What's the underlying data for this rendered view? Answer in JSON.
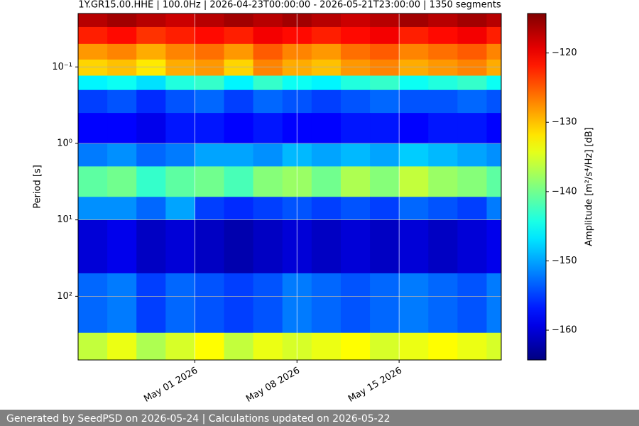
{
  "chart_data": {
    "type": "spectrogram",
    "title": "1Y.GR15.00.HHE | 100.0Hz | 2026-04-23T00:00:00 - 2026-05-21T23:00:00 | 1350 segments",
    "y_label": "Period [s]",
    "colorbar_label": "Amplitude [m²/s⁴/Hz] [dB]",
    "footer": "Generated by SeedPSD on 2026-05-24 | Calculations updated on 2026-05-22",
    "colormap": "jet",
    "log_y": true,
    "grid": true,
    "xlim": [
      "2026-04-23",
      "2026-05-22"
    ],
    "xticks": [
      {
        "value": "2026-05-01",
        "label": "May 01 2026"
      },
      {
        "value": "2026-05-08",
        "label": "May 08 2026"
      },
      {
        "value": "2026-05-15",
        "label": "May 15 2026"
      }
    ],
    "ylim": [
      680,
      0.02
    ],
    "yticks": [
      {
        "value": 0.1,
        "label": "10⁻¹"
      },
      {
        "value": 1,
        "label": "10⁰"
      },
      {
        "value": 10,
        "label": "10¹"
      },
      {
        "value": 100,
        "label": "10²"
      }
    ],
    "zlim": [
      -164.3,
      -114.3
    ],
    "zticks": [
      {
        "value": -120,
        "label": "−120"
      },
      {
        "value": -130,
        "label": "−130"
      },
      {
        "value": -140,
        "label": "−140"
      },
      {
        "value": -150,
        "label": "−150"
      },
      {
        "value": -160,
        "label": "−160"
      }
    ],
    "x": [
      "2026-04-23",
      "2026-04-25",
      "2026-04-27",
      "2026-04-29",
      "2026-05-01",
      "2026-05-03",
      "2026-05-05",
      "2026-05-07",
      "2026-05-09",
      "2026-05-11",
      "2026-05-13",
      "2026-05-15",
      "2026-05-17",
      "2026-05-19",
      "2026-05-21"
    ],
    "period_edges": [
      0.02,
      0.03,
      0.05,
      0.08,
      0.13,
      0.2,
      0.4,
      1,
      2,
      5,
      10,
      50,
      300,
      680
    ],
    "z": [
      [
        -117,
        -116,
        -117,
        -118,
        -117,
        -116,
        -117,
        -116,
        -117,
        -118,
        -117,
        -116,
        -117,
        -116,
        -117
      ],
      [
        -122,
        -121,
        -123,
        -122,
        -121,
        -122,
        -120,
        -121,
        -122,
        -121,
        -120,
        -122,
        -121,
        -120,
        -122
      ],
      [
        -128,
        -127,
        -129,
        -127,
        -126,
        -128,
        -125,
        -127,
        -128,
        -126,
        -125,
        -127,
        -126,
        -125,
        -127
      ],
      [
        -131,
        -130,
        -132,
        -129,
        -128,
        -131,
        -127,
        -129,
        -130,
        -128,
        -127,
        -129,
        -128,
        -127,
        -129
      ],
      [
        -146,
        -145,
        -147,
        -144,
        -143,
        -146,
        -143,
        -145,
        -146,
        -144,
        -143,
        -145,
        -144,
        -143,
        -145
      ],
      [
        -155,
        -154,
        -156,
        -154,
        -153,
        -155,
        -153,
        -154,
        -155,
        -154,
        -153,
        -154,
        -154,
        -153,
        -154
      ],
      [
        -158,
        -158,
        -159,
        -157,
        -157,
        -158,
        -157,
        -158,
        -158,
        -157,
        -157,
        -158,
        -157,
        -157,
        -158
      ],
      [
        -152,
        -151,
        -153,
        -152,
        -150,
        -150,
        -151,
        -149,
        -150,
        -149,
        -150,
        -148,
        -149,
        -150,
        -151
      ],
      [
        -141,
        -140,
        -143,
        -141,
        -140,
        -142,
        -139,
        -138,
        -140,
        -137,
        -139,
        -136,
        -138,
        -139,
        -141
      ],
      [
        -151,
        -151,
        -153,
        -150,
        -155,
        -156,
        -155,
        -154,
        -155,
        -154,
        -155,
        -153,
        -154,
        -155,
        -152
      ],
      [
        -160,
        -159,
        -161,
        -160,
        -161,
        -162,
        -161,
        -160,
        -161,
        -160,
        -161,
        -160,
        -161,
        -160,
        -159
      ],
      [
        -153,
        -152,
        -155,
        -153,
        -154,
        -155,
        -154,
        -152,
        -153,
        -154,
        -153,
        -152,
        -153,
        -154,
        -152
      ],
      [
        -136,
        -134,
        -137,
        -135,
        -133,
        -136,
        -134,
        -135,
        -134,
        -133,
        -135,
        -134,
        -133,
        -134,
        -135
      ]
    ]
  }
}
